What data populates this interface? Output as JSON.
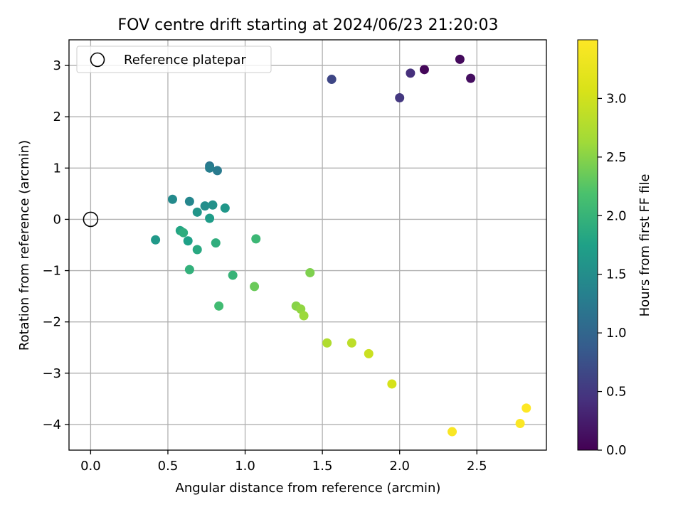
{
  "chart_data": {
    "type": "scatter",
    "title": "FOV centre drift starting at 2024/06/23 21:20:03",
    "xlabel": "Angular distance from reference (arcmin)",
    "ylabel": "Rotation from reference (arcmin)",
    "xlim": [
      -0.14,
      2.95
    ],
    "ylim": [
      -4.5,
      3.5
    ],
    "xticks": [
      0.0,
      0.5,
      1.0,
      1.5,
      2.0,
      2.5
    ],
    "xtick_labels": [
      "0.0",
      "0.5",
      "1.0",
      "1.5",
      "2.0",
      "2.5"
    ],
    "yticks": [
      -4,
      -3,
      -2,
      -1,
      0,
      1,
      2,
      3
    ],
    "ytick_labels": [
      "−4",
      "−3",
      "−2",
      "−1",
      "0",
      "1",
      "2",
      "3"
    ],
    "grid": true,
    "legend": {
      "position": "top-left",
      "entries": [
        "Reference platepar"
      ]
    },
    "reference_point": {
      "x": 0.0,
      "y": 0.0,
      "marker": "hollow-circle",
      "label": "Reference platepar"
    },
    "colorbar": {
      "label": "Hours from first FF file",
      "colormap": "viridis",
      "range": [
        0.0,
        3.5
      ],
      "ticks": [
        0.0,
        0.5,
        1.0,
        1.5,
        2.0,
        2.5,
        3.0
      ],
      "tick_labels": [
        "0.0",
        "0.5",
        "1.0",
        "1.5",
        "2.0",
        "2.5",
        "3.0"
      ]
    },
    "points": [
      {
        "x": 2.16,
        "y": 2.92,
        "c": 0.05
      },
      {
        "x": 2.39,
        "y": 3.12,
        "c": 0.08
      },
      {
        "x": 2.46,
        "y": 2.75,
        "c": 0.12
      },
      {
        "x": 2.07,
        "y": 2.85,
        "c": 0.42
      },
      {
        "x": 2.0,
        "y": 2.37,
        "c": 0.5
      },
      {
        "x": 1.56,
        "y": 2.73,
        "c": 0.65
      },
      {
        "x": 0.77,
        "y": 1.04,
        "c": 1.2
      },
      {
        "x": 0.82,
        "y": 0.95,
        "c": 1.25
      },
      {
        "x": 0.77,
        "y": 1.0,
        "c": 1.3
      },
      {
        "x": 0.64,
        "y": 0.35,
        "c": 1.4
      },
      {
        "x": 0.53,
        "y": 0.39,
        "c": 1.45
      },
      {
        "x": 0.74,
        "y": 0.26,
        "c": 1.5
      },
      {
        "x": 0.79,
        "y": 0.28,
        "c": 1.55
      },
      {
        "x": 0.69,
        "y": 0.14,
        "c": 1.6
      },
      {
        "x": 0.87,
        "y": 0.22,
        "c": 1.62
      },
      {
        "x": 0.42,
        "y": -0.4,
        "c": 1.65
      },
      {
        "x": 0.77,
        "y": 0.02,
        "c": 1.68
      },
      {
        "x": 0.63,
        "y": -0.42,
        "c": 1.75
      },
      {
        "x": 0.58,
        "y": -0.22,
        "c": 1.8
      },
      {
        "x": 0.69,
        "y": -0.59,
        "c": 1.85
      },
      {
        "x": 0.6,
        "y": -0.26,
        "c": 1.9
      },
      {
        "x": 0.81,
        "y": -0.46,
        "c": 1.92
      },
      {
        "x": 0.64,
        "y": -0.98,
        "c": 1.95
      },
      {
        "x": 0.92,
        "y": -1.09,
        "c": 2.0
      },
      {
        "x": 1.07,
        "y": -0.38,
        "c": 2.05
      },
      {
        "x": 0.83,
        "y": -1.69,
        "c": 2.1
      },
      {
        "x": 1.06,
        "y": -1.31,
        "c": 2.35
      },
      {
        "x": 1.42,
        "y": -1.04,
        "c": 2.45
      },
      {
        "x": 1.33,
        "y": -1.69,
        "c": 2.5
      },
      {
        "x": 1.36,
        "y": -1.75,
        "c": 2.55
      },
      {
        "x": 1.38,
        "y": -1.88,
        "c": 2.6
      },
      {
        "x": 1.53,
        "y": -2.41,
        "c": 2.75
      },
      {
        "x": 1.69,
        "y": -2.41,
        "c": 2.85
      },
      {
        "x": 1.8,
        "y": -2.62,
        "c": 2.95
      },
      {
        "x": 1.95,
        "y": -3.21,
        "c": 3.05
      },
      {
        "x": 2.34,
        "y": -4.14,
        "c": 3.45
      },
      {
        "x": 2.78,
        "y": -3.98,
        "c": 3.48
      },
      {
        "x": 2.82,
        "y": -3.68,
        "c": 3.5
      }
    ]
  }
}
